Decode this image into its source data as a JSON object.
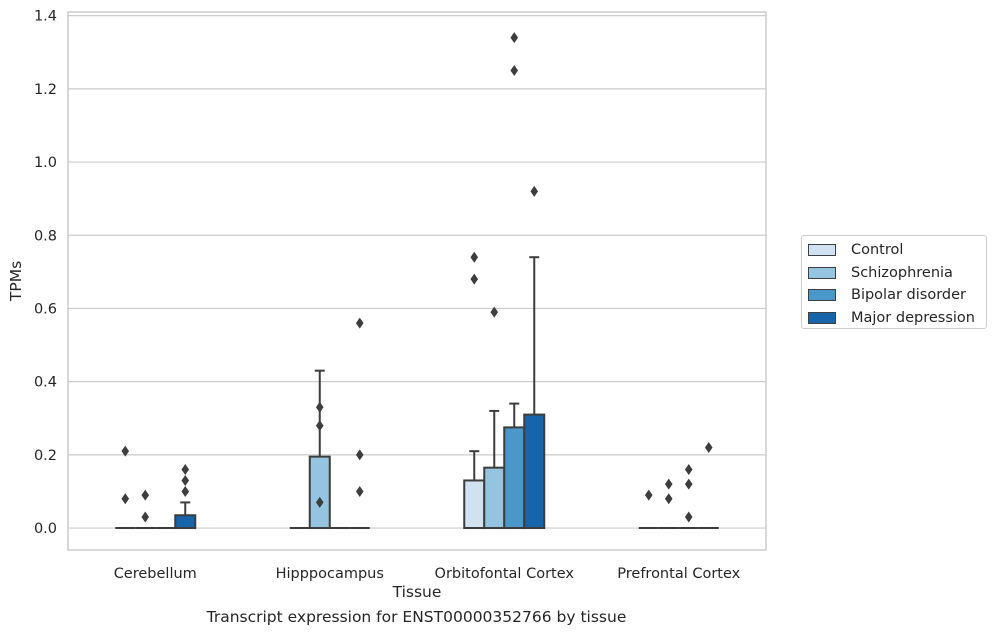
{
  "chart_data": {
    "type": "box",
    "xlabel": "Tissue",
    "ylabel": "TPMs",
    "caption": "Transcript expression for ENST00000352766 by tissue",
    "ylim": [
      -0.06,
      1.41
    ],
    "yticks": [
      "0.0",
      "0.2",
      "0.4",
      "0.6",
      "0.8",
      "1.0",
      "1.2",
      "1.4"
    ],
    "grid": true,
    "legend_position": "right",
    "categories": [
      "Cerebellum",
      "Hipppocampus",
      "Orbitofontal Cortex",
      "Prefrontal Cortex"
    ],
    "series": [
      {
        "name": "Control",
        "color": "#d0e1f2",
        "boxes": [
          {
            "q1": 0,
            "median": 0,
            "q3": 0,
            "whisker_low": 0,
            "whisker_high": 0,
            "outliers": [
              0.21,
              0.08
            ]
          },
          {
            "q1": 0,
            "median": 0,
            "q3": 0,
            "whisker_low": 0,
            "whisker_high": 0,
            "outliers": []
          },
          {
            "q1": 0,
            "median": 0,
            "q3": 0.13,
            "whisker_low": 0,
            "whisker_high": 0.21,
            "outliers": [
              0.74,
              0.68
            ]
          },
          {
            "q1": 0,
            "median": 0,
            "q3": 0,
            "whisker_low": 0,
            "whisker_high": 0,
            "outliers": [
              0.09
            ]
          }
        ]
      },
      {
        "name": "Schizophrenia",
        "color": "#94c4df",
        "boxes": [
          {
            "q1": 0,
            "median": 0,
            "q3": 0,
            "whisker_low": 0,
            "whisker_high": 0,
            "outliers": [
              0.09,
              0.03
            ]
          },
          {
            "q1": 0,
            "median": 0,
            "q3": 0.195,
            "whisker_low": 0,
            "whisker_high": 0.43,
            "outliers": [
              0.33,
              0.28,
              0.07
            ]
          },
          {
            "q1": 0,
            "median": 0,
            "q3": 0.165,
            "whisker_low": 0,
            "whisker_high": 0.32,
            "outliers": [
              0.59
            ]
          },
          {
            "q1": 0,
            "median": 0,
            "q3": 0,
            "whisker_low": 0,
            "whisker_high": 0,
            "outliers": [
              0.12,
              0.08
            ]
          }
        ]
      },
      {
        "name": "Bipolar disorder",
        "color": "#4a98c9",
        "boxes": [
          {
            "q1": 0,
            "median": 0,
            "q3": 0,
            "whisker_low": 0,
            "whisker_high": 0,
            "outliers": []
          },
          {
            "q1": 0,
            "median": 0,
            "q3": 0,
            "whisker_low": 0,
            "whisker_high": 0,
            "outliers": []
          },
          {
            "q1": 0,
            "median": 0,
            "q3": 0.275,
            "whisker_low": 0,
            "whisker_high": 0.34,
            "outliers": [
              1.34,
              1.25
            ]
          },
          {
            "q1": 0,
            "median": 0,
            "q3": 0,
            "whisker_low": 0,
            "whisker_high": 0,
            "outliers": [
              0.16,
              0.12,
              0.03
            ]
          }
        ]
      },
      {
        "name": "Major depression",
        "color": "#1764ab",
        "boxes": [
          {
            "q1": 0,
            "median": 0,
            "q3": 0.035,
            "whisker_low": 0,
            "whisker_high": 0.07,
            "outliers": [
              0.16,
              0.13,
              0.1
            ]
          },
          {
            "q1": 0,
            "median": 0,
            "q3": 0,
            "whisker_low": 0,
            "whisker_high": 0,
            "outliers": [
              0.56,
              0.2,
              0.1
            ]
          },
          {
            "q1": 0,
            "median": 0,
            "q3": 0.31,
            "whisker_low": 0,
            "whisker_high": 0.74,
            "outliers": [
              0.92
            ]
          },
          {
            "q1": 0,
            "median": 0,
            "q3": 0,
            "whisker_low": 0,
            "whisker_high": 0,
            "outliers": [
              0.22
            ]
          }
        ]
      }
    ]
  }
}
